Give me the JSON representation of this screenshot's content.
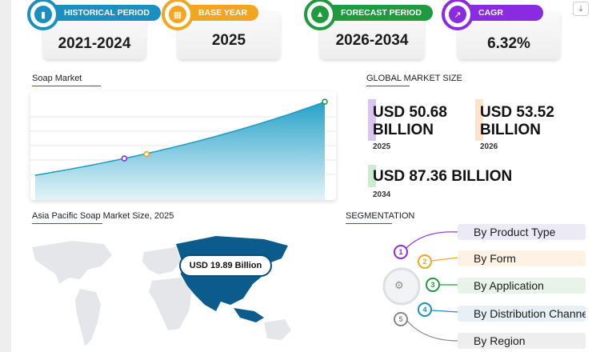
{
  "stats": [
    {
      "label": "HISTORICAL PERIOD",
      "value": "2021-2024",
      "color": "#1b8fc0",
      "icon": "bar-chart-icon"
    },
    {
      "label": "BASE YEAR",
      "value": "2025",
      "color": "#f2a51f",
      "icon": "calendar-icon"
    },
    {
      "label": "FORECAST PERIOD",
      "value": "2026-2034",
      "color": "#1f9a3e",
      "icon": "growth-chart-icon"
    },
    {
      "label": "CAGR",
      "value": "6.32%",
      "color": "#8a2be2",
      "icon": "trend-icon"
    }
  ],
  "chart": {
    "title": "Soap Market",
    "line_color": "#1a9cc4",
    "chart_data": {
      "type": "area",
      "x": [
        2025,
        2026,
        2034
      ],
      "y": [
        50.68,
        53.52,
        87.36
      ],
      "title": "Soap Market",
      "xlabel": "",
      "ylabel": "",
      "grid": true
    }
  },
  "global": {
    "title": "GLOBAL MARKET SIZE",
    "items": [
      {
        "value": "USD 50.68 BILLION",
        "year": "2025",
        "color": "#d8c6ee"
      },
      {
        "value": "USD 53.52 BILLION",
        "year": "2026",
        "color": "#fbe3cc"
      },
      {
        "value": "USD 87.36 BILLION",
        "year": "2034",
        "color": "#cdeccf"
      }
    ]
  },
  "region": {
    "title": "Asia Pacific Soap Market Size, 2025",
    "value": "USD 19.89 Billion",
    "highlight_color": "#0b5b8c"
  },
  "segmentation": {
    "title": "SEGMENTATION",
    "items": [
      {
        "num": "1",
        "label": "By Product Type",
        "color": "#8a2be2",
        "bg": "#eceaf5"
      },
      {
        "num": "2",
        "label": "By Form",
        "color": "#f2a51f",
        "bg": "#fdf2e4"
      },
      {
        "num": "3",
        "label": "By Application",
        "color": "#1f9a3e",
        "bg": "#e8f4ea"
      },
      {
        "num": "4",
        "label": "By Distribution Channel",
        "color": "#1b8fc0",
        "bg": "#e6f0f6"
      },
      {
        "num": "5",
        "label": "By Region",
        "color": "#888888",
        "bg": "#eeeeee"
      }
    ]
  }
}
